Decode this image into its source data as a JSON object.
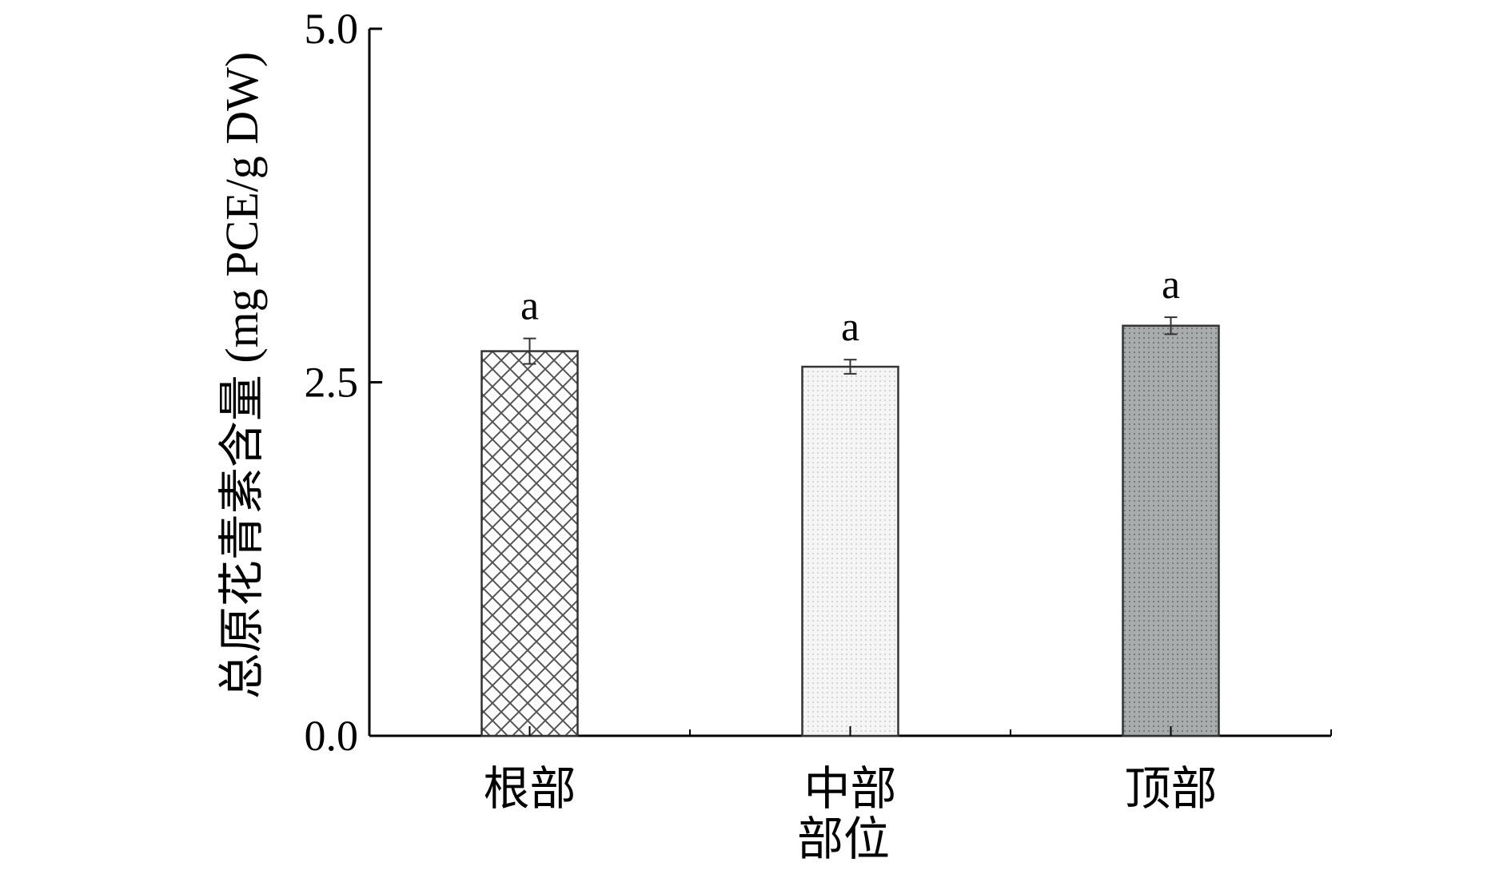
{
  "chart_data": {
    "type": "bar",
    "title": "",
    "xlabel": "部位",
    "ylabel": "总原花青素含量 (mg PCE/g DW)",
    "ylim": [
      0,
      5.0
    ],
    "yticks": [
      0.0,
      2.5,
      5.0
    ],
    "ytick_labels": [
      "0.0",
      "2.5",
      "5.0"
    ],
    "categories": [
      "根部",
      "中部",
      "顶部"
    ],
    "values": [
      2.72,
      2.61,
      2.9
    ],
    "errors": [
      0.09,
      0.05,
      0.06
    ],
    "significance": [
      "a",
      "a",
      "a"
    ],
    "bar_styles": [
      {
        "pattern": "crosshatch",
        "fill": "#ffffff",
        "stroke": "#333333"
      },
      {
        "pattern": "light-dots",
        "fill": "#f4f4f4",
        "stroke": "#333333"
      },
      {
        "pattern": "dark-dots",
        "fill": "#a9adad",
        "stroke": "#333333"
      }
    ],
    "grid": false,
    "legend": "none"
  }
}
